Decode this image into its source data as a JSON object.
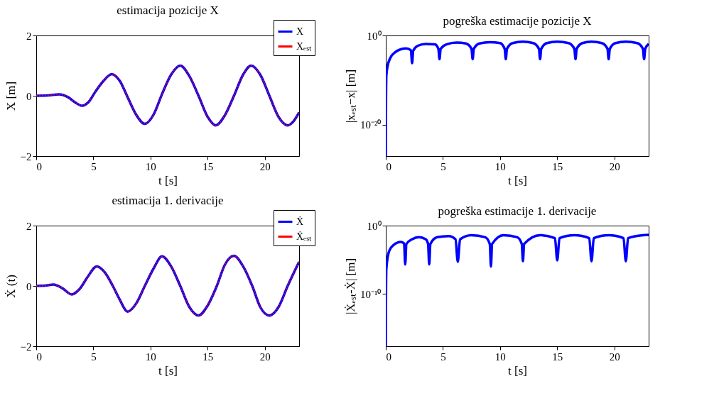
{
  "chart_data": [
    {
      "type": "line",
      "title": "estimacija pozicije X",
      "xlabel": "t [s]",
      "ylabel": "X [m]",
      "xlim": [
        0,
        23
      ],
      "xticks": [
        0,
        5,
        10,
        15,
        20
      ],
      "ylim": [
        -2,
        2
      ],
      "yticks": [
        -2,
        0,
        2
      ],
      "legend": "top right",
      "x": [
        0,
        1,
        2,
        2.8,
        3.4,
        4,
        4.6,
        5.2,
        5.9,
        6.6,
        7.3,
        8,
        8.7,
        9.5,
        10.3,
        11,
        11.8,
        12.6,
        13.4,
        14.2,
        15,
        15.7,
        16.5,
        17.3,
        18.1,
        18.8,
        19.6,
        20.4,
        21.2,
        22,
        22.5,
        23
      ],
      "series": [
        {
          "name": "X",
          "color": "#0000ff",
          "line_style": "solid",
          "values": [
            0,
            0.01,
            0.05,
            -0.05,
            -0.22,
            -0.33,
            -0.2,
            0.15,
            0.5,
            0.72,
            0.5,
            -0.05,
            -0.6,
            -0.93,
            -0.6,
            0.05,
            0.7,
            1.0,
            0.65,
            0,
            -0.7,
            -0.98,
            -0.65,
            0,
            0.7,
            1.0,
            0.7,
            0,
            -0.7,
            -0.98,
            -0.85,
            -0.55
          ]
        },
        {
          "name": "Xₑₛₜ",
          "color": "#ff0000",
          "line_style": "dotted",
          "values": [
            0,
            0.01,
            0.05,
            -0.05,
            -0.22,
            -0.33,
            -0.2,
            0.15,
            0.5,
            0.72,
            0.5,
            -0.05,
            -0.6,
            -0.93,
            -0.6,
            0.05,
            0.7,
            1.0,
            0.65,
            0,
            -0.7,
            -0.98,
            -0.65,
            0,
            0.7,
            1.0,
            0.7,
            0,
            -0.7,
            -0.98,
            -0.85,
            -0.55
          ]
        }
      ]
    },
    {
      "type": "line",
      "title": "pogreška estimacije pozicije X",
      "xlabel": "t [s]",
      "ylabel": "|xₑₛₜ−x| [m]",
      "xlim": [
        0,
        23
      ],
      "xticks": [
        0,
        5,
        10,
        15,
        20
      ],
      "ylim": [
        1e-27,
        1
      ],
      "yticks": [
        {
          "value": 1,
          "label": "10⁰"
        },
        {
          "value": 1e-20,
          "label": "10⁻²⁰"
        }
      ],
      "log": true,
      "x": [
        0,
        0.02,
        0.05,
        0.15,
        0.4,
        0.8,
        1.3,
        1.8,
        2.2,
        2.3,
        2.4,
        2.8,
        3.5,
        4.3,
        4.6,
        4.7,
        4.8,
        5.3,
        6.2,
        7.0,
        7.5,
        7.6,
        7.7,
        8.2,
        9.1,
        10.0,
        10.4,
        10.5,
        10.6,
        11.1,
        12.0,
        12.9,
        13.4,
        13.5,
        13.6,
        14.1,
        15.0,
        16.0,
        16.5,
        16.6,
        16.7,
        17.2,
        18.0,
        18.9,
        19.4,
        19.5,
        19.6,
        20.1,
        21.0,
        22.0,
        22.5,
        22.6,
        22.7,
        23
      ],
      "series": [
        {
          "color": "#0000ff",
          "line_style": "solid",
          "values": [
            1e-27,
            1e-15,
            1e-09,
            1e-07,
            1e-05,
            0.00016,
            0.0008,
            0.0013,
            0.0005,
            6.3e-07,
            0.0004,
            0.005,
            0.013,
            0.01,
            0.001,
            5e-06,
            0.001,
            0.01,
            0.025,
            0.016,
            0.001,
            5e-06,
            0.001,
            0.016,
            0.032,
            0.02,
            0.001,
            5e-06,
            0.001,
            0.02,
            0.04,
            0.02,
            0.001,
            5e-06,
            0.001,
            0.02,
            0.04,
            0.02,
            0.001,
            5e-06,
            0.001,
            0.02,
            0.04,
            0.02,
            0.001,
            5e-06,
            0.001,
            0.02,
            0.04,
            0.02,
            0.001,
            5e-06,
            0.001,
            0.013
          ]
        }
      ]
    },
    {
      "type": "line",
      "title": "estimacija 1. derivacije",
      "xlabel": "t [s]",
      "ylabel": "Ẋ (t)",
      "xlim": [
        0,
        23
      ],
      "xticks": [
        0,
        5,
        10,
        15,
        20
      ],
      "ylim": [
        -2,
        2
      ],
      "yticks": [
        -2,
        0,
        2
      ],
      "legend": "top right",
      "x": [
        0,
        0.8,
        1.5,
        2.3,
        3.1,
        3.8,
        4.5,
        5.3,
        6,
        6.7,
        7.3,
        8,
        8.8,
        9.5,
        10.3,
        11,
        11.8,
        12.6,
        13.4,
        14.2,
        15,
        15.8,
        16.5,
        17.3,
        18.1,
        18.9,
        19.6,
        20.4,
        21.2,
        22,
        23
      ],
      "series": [
        {
          "name": "Ẋ",
          "color": "#0000ff",
          "line_style": "solid",
          "values": [
            0,
            0.01,
            0.05,
            -0.08,
            -0.28,
            -0.1,
            0.3,
            0.65,
            0.45,
            0,
            -0.45,
            -0.85,
            -0.55,
            0,
            0.6,
            0.98,
            0.65,
            0,
            -0.7,
            -0.98,
            -0.65,
            0,
            0.7,
            1.0,
            0.65,
            0,
            -0.7,
            -0.98,
            -0.7,
            0,
            0.8
          ]
        },
        {
          "name": "Ẋₑₛₜ",
          "color": "#ff0000",
          "line_style": "dotted",
          "values": [
            0,
            0.01,
            0.05,
            -0.08,
            -0.28,
            -0.1,
            0.3,
            0.65,
            0.45,
            0,
            -0.45,
            -0.85,
            -0.55,
            0,
            0.6,
            0.98,
            0.65,
            0,
            -0.7,
            -0.98,
            -0.65,
            0,
            0.7,
            1.0,
            0.65,
            0,
            -0.7,
            -0.98,
            -0.7,
            0,
            0.8
          ]
        }
      ]
    },
    {
      "type": "line",
      "title": "pogreška estimacije 1. derivacije",
      "xlabel": "t [s]",
      "ylabel": "|Ẋₑₛₜ-Ẋ| [m]",
      "xlim": [
        0,
        23
      ],
      "xticks": [
        0,
        5,
        10,
        15,
        20
      ],
      "ylim": [
        2e-18,
        1
      ],
      "yticks": [
        {
          "value": 1,
          "label": "10⁰"
        },
        {
          "value": 1e-10,
          "label": "10⁻¹⁰"
        }
      ],
      "log": true,
      "x": [
        0,
        0.02,
        0.05,
        0.3,
        0.7,
        1.3,
        1.6,
        1.7,
        1.8,
        2.3,
        2.9,
        3.5,
        3.7,
        3.8,
        3.9,
        4.5,
        5.5,
        6.1,
        6.3,
        6.5,
        7.5,
        8.7,
        9.1,
        9.2,
        9.3,
        10.3,
        11.5,
        11.9,
        12.0,
        12.1,
        13.5,
        14.8,
        15.0,
        15.2,
        16.5,
        17.8,
        18.0,
        18.2,
        19.5,
        20.8,
        21.0,
        21.2,
        22.5,
        23
      ],
      "series": [
        {
          "color": "#0000ff",
          "line_style": "solid",
          "values": [
            2e-18,
            1e-10,
            5e-07,
            0.0002,
            0.0015,
            0.004,
            0.0025,
            2e-06,
            0.002,
            0.01,
            0.02,
            0.01,
            0.002,
            2e-06,
            0.002,
            0.02,
            0.03,
            0.01,
            5e-06,
            0.01,
            0.04,
            0.02,
            0.002,
            1e-06,
            0.002,
            0.04,
            0.02,
            0.002,
            6e-06,
            0.002,
            0.04,
            0.015,
            8e-06,
            0.015,
            0.04,
            0.015,
            6e-06,
            0.015,
            0.04,
            0.015,
            6e-06,
            0.015,
            0.04,
            0.045
          ]
        }
      ]
    }
  ]
}
